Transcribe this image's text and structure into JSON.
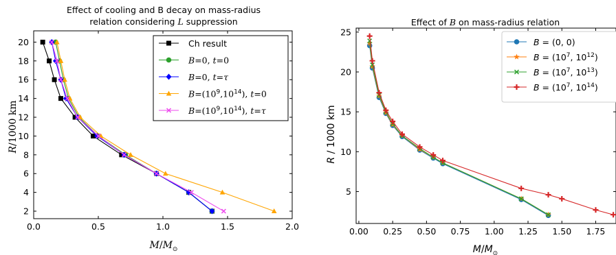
{
  "chart_data": [
    {
      "type": "line",
      "title": "Effect of cooling and B decay on mass-radius relation considering L suppression",
      "title_line1": "Effect of cooling and B decay on mass-radius",
      "title_line2": "relation considering L suppression",
      "xlabel": "M/M⊙",
      "ylabel": "R/1000 km",
      "xlim": [
        0.0,
        2.0
      ],
      "ylim": [
        1.2,
        21.2
      ],
      "x_ticks": [
        "0.0",
        "0.5",
        "1.0",
        "1.5",
        "2.0"
      ],
      "y_ticks": [
        "2",
        "4",
        "6",
        "8",
        "10",
        "12",
        "14",
        "16",
        "18",
        "20"
      ],
      "legend_position": "top-right",
      "grid": false,
      "series": [
        {
          "name": "Ch result",
          "color": "#000000",
          "marker": "square",
          "x": [
            0.07,
            0.12,
            0.16,
            0.21,
            0.32,
            0.46,
            0.68,
            0.95,
            1.2,
            1.38
          ],
          "y": [
            20,
            18,
            16,
            14,
            12,
            10,
            8,
            6,
            4,
            2
          ]
        },
        {
          "name": "B=0, t=0",
          "color": "#2ca02c",
          "marker": "circle",
          "x": [
            0.17,
            0.2,
            0.23,
            0.27,
            0.35,
            0.5,
            0.71,
            0.95,
            1.2,
            1.38
          ],
          "y": [
            20,
            18,
            16,
            14,
            12,
            10,
            8,
            6,
            4,
            2
          ]
        },
        {
          "name": "B=0, t=τ",
          "color": "#0000ff",
          "marker": "diamond",
          "x": [
            0.14,
            0.17,
            0.21,
            0.25,
            0.34,
            0.49,
            0.7,
            0.95,
            1.2,
            1.38
          ],
          "y": [
            20,
            18,
            16,
            14,
            12,
            10,
            8,
            6,
            4,
            2
          ]
        },
        {
          "name": "B=(10^9,10^14), t=0",
          "color": "#ffa500",
          "marker": "triangle",
          "x": [
            0.18,
            0.21,
            0.24,
            0.28,
            0.36,
            0.52,
            0.75,
            1.02,
            1.46,
            1.86
          ],
          "y": [
            20,
            18,
            16,
            14,
            12,
            10,
            8,
            6,
            4,
            2
          ]
        },
        {
          "name": "B=(10^9,10^14), t=τ",
          "color": "#ee4aee",
          "marker": "x",
          "x": [
            0.14,
            0.18,
            0.21,
            0.26,
            0.34,
            0.5,
            0.7,
            0.95,
            1.22,
            1.47
          ],
          "y": [
            20,
            18,
            16,
            14,
            12,
            10,
            8,
            6,
            4,
            2
          ]
        }
      ]
    },
    {
      "type": "line",
      "title": "Effect of B on mass-radius relation",
      "title_parts": [
        "Effect of ",
        "B",
        " on mass-radius relation"
      ],
      "xlabel": "M/M⊙",
      "ylabel": "R / 1000 km",
      "xlim": [
        -0.02,
        1.9
      ],
      "ylim": [
        1.0,
        25.5
      ],
      "x_ticks": [
        "0.00",
        "0.25",
        "0.50",
        "0.75",
        "1.00",
        "1.25",
        "1.50",
        "1.75"
      ],
      "y_ticks": [
        "5",
        "10",
        "15",
        "20",
        "25"
      ],
      "legend_position": "top-right",
      "grid": false,
      "series": [
        {
          "name": "B = (0, 0)",
          "color": "#1f77b4",
          "marker": "circle",
          "x": [
            0.08,
            0.1,
            0.15,
            0.2,
            0.25,
            0.32,
            0.45,
            0.55,
            0.62,
            1.2,
            1.4
          ],
          "y": [
            23.3,
            20.5,
            16.8,
            14.8,
            13.3,
            11.9,
            10.2,
            9.2,
            8.5,
            4.0,
            2.0
          ]
        },
        {
          "name": "B = (10^7, 10^12)",
          "color": "#ff7f0e",
          "marker": "star",
          "x": [
            0.08,
            0.1,
            0.15,
            0.2,
            0.25,
            0.32,
            0.45,
            0.55,
            0.62,
            1.2,
            1.4
          ],
          "y": [
            23.6,
            20.7,
            17.0,
            14.9,
            13.4,
            12.0,
            10.3,
            9.3,
            8.6,
            4.1,
            2.1
          ]
        },
        {
          "name": "B = (10^7, 10^13)",
          "color": "#2ca02c",
          "marker": "x",
          "x": [
            0.08,
            0.1,
            0.15,
            0.2,
            0.25,
            0.32,
            0.45,
            0.55,
            0.62,
            1.2,
            1.4
          ],
          "y": [
            23.9,
            20.9,
            17.1,
            15.0,
            13.5,
            12.0,
            10.4,
            9.3,
            8.6,
            4.1,
            2.1
          ]
        },
        {
          "name": "B = (10^7, 10^14)",
          "color": "#d62728",
          "marker": "plus",
          "x": [
            0.08,
            0.1,
            0.15,
            0.2,
            0.25,
            0.32,
            0.45,
            0.55,
            0.62,
            1.2,
            1.4,
            1.5,
            1.75,
            1.88
          ],
          "y": [
            24.5,
            21.4,
            17.4,
            15.2,
            13.8,
            12.2,
            10.6,
            9.6,
            8.9,
            5.4,
            4.6,
            4.1,
            2.7,
            2.1
          ]
        }
      ]
    }
  ],
  "left_legend": [
    {
      "type": "text",
      "text": "Ch result"
    },
    {
      "type": "parts",
      "parts": [
        [
          "B",
          "i"
        ],
        [
          "=0, ",
          "n"
        ],
        [
          "t",
          "i"
        ],
        [
          "=0",
          "n"
        ]
      ]
    },
    {
      "type": "parts",
      "parts": [
        [
          "B",
          "i"
        ],
        [
          "=0, ",
          "n"
        ],
        [
          "t",
          "i"
        ],
        [
          "=",
          "n"
        ],
        [
          "τ",
          "i"
        ]
      ]
    },
    {
      "type": "parts",
      "parts": [
        [
          "B",
          "i"
        ],
        [
          "=(10",
          "n"
        ],
        [
          "9",
          "sup"
        ],
        [
          ",10",
          "n"
        ],
        [
          "14",
          "sup"
        ],
        [
          "), ",
          "n"
        ],
        [
          "t",
          "i"
        ],
        [
          "=0",
          "n"
        ]
      ]
    },
    {
      "type": "parts",
      "parts": [
        [
          "B",
          "i"
        ],
        [
          "=(10",
          "n"
        ],
        [
          "9",
          "sup"
        ],
        [
          ",10",
          "n"
        ],
        [
          "14",
          "sup"
        ],
        [
          "), ",
          "n"
        ],
        [
          "t",
          "i"
        ],
        [
          "=",
          "n"
        ],
        [
          "τ",
          "i"
        ]
      ]
    }
  ],
  "right_legend": [
    {
      "parts": [
        [
          "B",
          "i"
        ],
        [
          " = (0, 0)",
          "n"
        ]
      ]
    },
    {
      "parts": [
        [
          "B",
          "i"
        ],
        [
          " = (10",
          "n"
        ],
        [
          "7",
          "sup"
        ],
        [
          ", 10",
          "n"
        ],
        [
          "12",
          "sup"
        ],
        [
          ")",
          "n"
        ]
      ]
    },
    {
      "parts": [
        [
          "B",
          "i"
        ],
        [
          " = (10",
          "n"
        ],
        [
          "7",
          "sup"
        ],
        [
          ", 10",
          "n"
        ],
        [
          "13",
          "sup"
        ],
        [
          ")",
          "n"
        ]
      ]
    },
    {
      "parts": [
        [
          "B",
          "i"
        ],
        [
          " = (10",
          "n"
        ],
        [
          "7",
          "sup"
        ],
        [
          ", 10",
          "n"
        ],
        [
          "14",
          "sup"
        ],
        [
          ")",
          "n"
        ]
      ]
    }
  ],
  "axis_label_parts": {
    "left_x": [
      [
        "M",
        "i"
      ],
      [
        "/",
        "n"
      ],
      [
        "M",
        "i"
      ],
      [
        "⊙",
        "sub"
      ]
    ],
    "left_y": [
      [
        "R",
        "i"
      ],
      [
        "/1000 km",
        "n"
      ]
    ],
    "right_x": [
      [
        "M",
        "i"
      ],
      [
        "/",
        "n"
      ],
      [
        "M",
        "i"
      ],
      [
        "⊙",
        "sub"
      ]
    ],
    "right_y": [
      [
        "R",
        "i"
      ],
      [
        " / 1000 km",
        "n"
      ]
    ]
  }
}
